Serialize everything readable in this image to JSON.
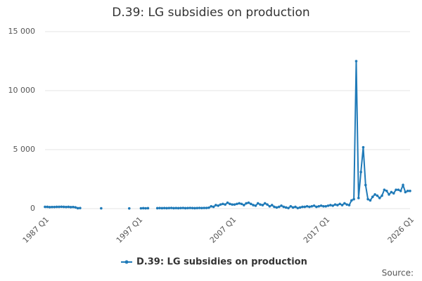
{
  "chart_data": {
    "type": "line",
    "title": "D.39: LG subsidies on production",
    "source": "Source:",
    "categories": [
      "1987 Q1",
      null,
      null,
      null,
      null,
      null,
      null,
      null,
      null,
      null,
      null,
      null,
      null,
      null,
      null,
      null,
      null,
      null,
      null,
      null,
      null,
      null,
      null,
      null,
      null,
      null,
      null,
      null,
      null,
      null,
      null,
      null,
      null,
      null,
      null,
      null,
      null,
      null,
      null,
      null,
      "1997 Q1",
      null,
      null,
      null,
      null,
      null,
      null,
      null,
      null,
      null,
      null,
      null,
      null,
      null,
      null,
      null,
      null,
      null,
      null,
      null,
      null,
      null,
      null,
      null,
      null,
      null,
      null,
      null,
      null,
      null,
      null,
      null,
      null,
      null,
      null,
      null,
      null,
      null,
      null,
      null,
      "2007 Q1",
      null,
      null,
      null,
      null,
      null,
      null,
      null,
      null,
      null,
      null,
      null,
      null,
      null,
      null,
      null,
      null,
      null,
      null,
      null,
      null,
      null,
      null,
      null,
      null,
      null,
      null,
      null,
      null,
      null,
      null,
      null,
      null,
      null,
      null,
      null,
      null,
      null,
      null,
      null,
      "2017 Q1",
      null,
      null,
      null,
      null,
      null,
      null,
      null,
      null,
      null,
      null,
      null,
      null,
      null,
      null,
      null,
      null,
      null,
      null,
      null,
      null,
      null,
      null,
      null,
      null,
      null,
      null,
      null,
      null,
      null,
      null,
      null,
      null,
      null,
      null,
      null,
      "2026 Q1"
    ],
    "series": [
      {
        "name": "D.39: LG subsidies on production",
        "color": "#1f7ab8",
        "values": [
          150,
          150,
          130,
          140,
          140,
          150,
          150,
          160,
          150,
          140,
          150,
          130,
          140,
          110,
          40,
          50,
          null,
          null,
          null,
          null,
          null,
          null,
          null,
          null,
          30,
          null,
          null,
          null,
          null,
          null,
          null,
          null,
          null,
          null,
          null,
          null,
          20,
          null,
          null,
          null,
          null,
          30,
          40,
          30,
          40,
          null,
          null,
          null,
          40,
          50,
          40,
          50,
          40,
          50,
          60,
          40,
          50,
          40,
          50,
          60,
          40,
          50,
          60,
          50,
          40,
          50,
          60,
          50,
          60,
          60,
          80,
          200,
          150,
          300,
          250,
          350,
          400,
          350,
          500,
          400,
          350,
          350,
          400,
          450,
          400,
          300,
          450,
          500,
          400,
          300,
          250,
          450,
          350,
          300,
          450,
          350,
          200,
          300,
          150,
          100,
          150,
          250,
          150,
          100,
          50,
          200,
          100,
          150,
          50,
          100,
          150,
          150,
          200,
          150,
          200,
          250,
          150,
          200,
          250,
          200,
          200,
          250,
          300,
          250,
          350,
          300,
          400,
          300,
          450,
          350,
          300,
          700,
          800,
          12500,
          900,
          3100,
          5200,
          2000,
          800,
          700,
          1000,
          1200,
          1100,
          900,
          1100,
          1600,
          1500,
          1200,
          1400,
          1300,
          1600,
          1600,
          1500,
          2000,
          1400,
          1500,
          1500
        ]
      }
    ],
    "ylim": [
      0,
      15000
    ],
    "yticks": [
      0,
      {
        "value": 5000,
        "label": "5 000"
      },
      {
        "value": 10000,
        "label": "10 000"
      },
      {
        "value": 15000,
        "label": "15 000"
      }
    ],
    "grid": true,
    "legend": "bottom"
  }
}
